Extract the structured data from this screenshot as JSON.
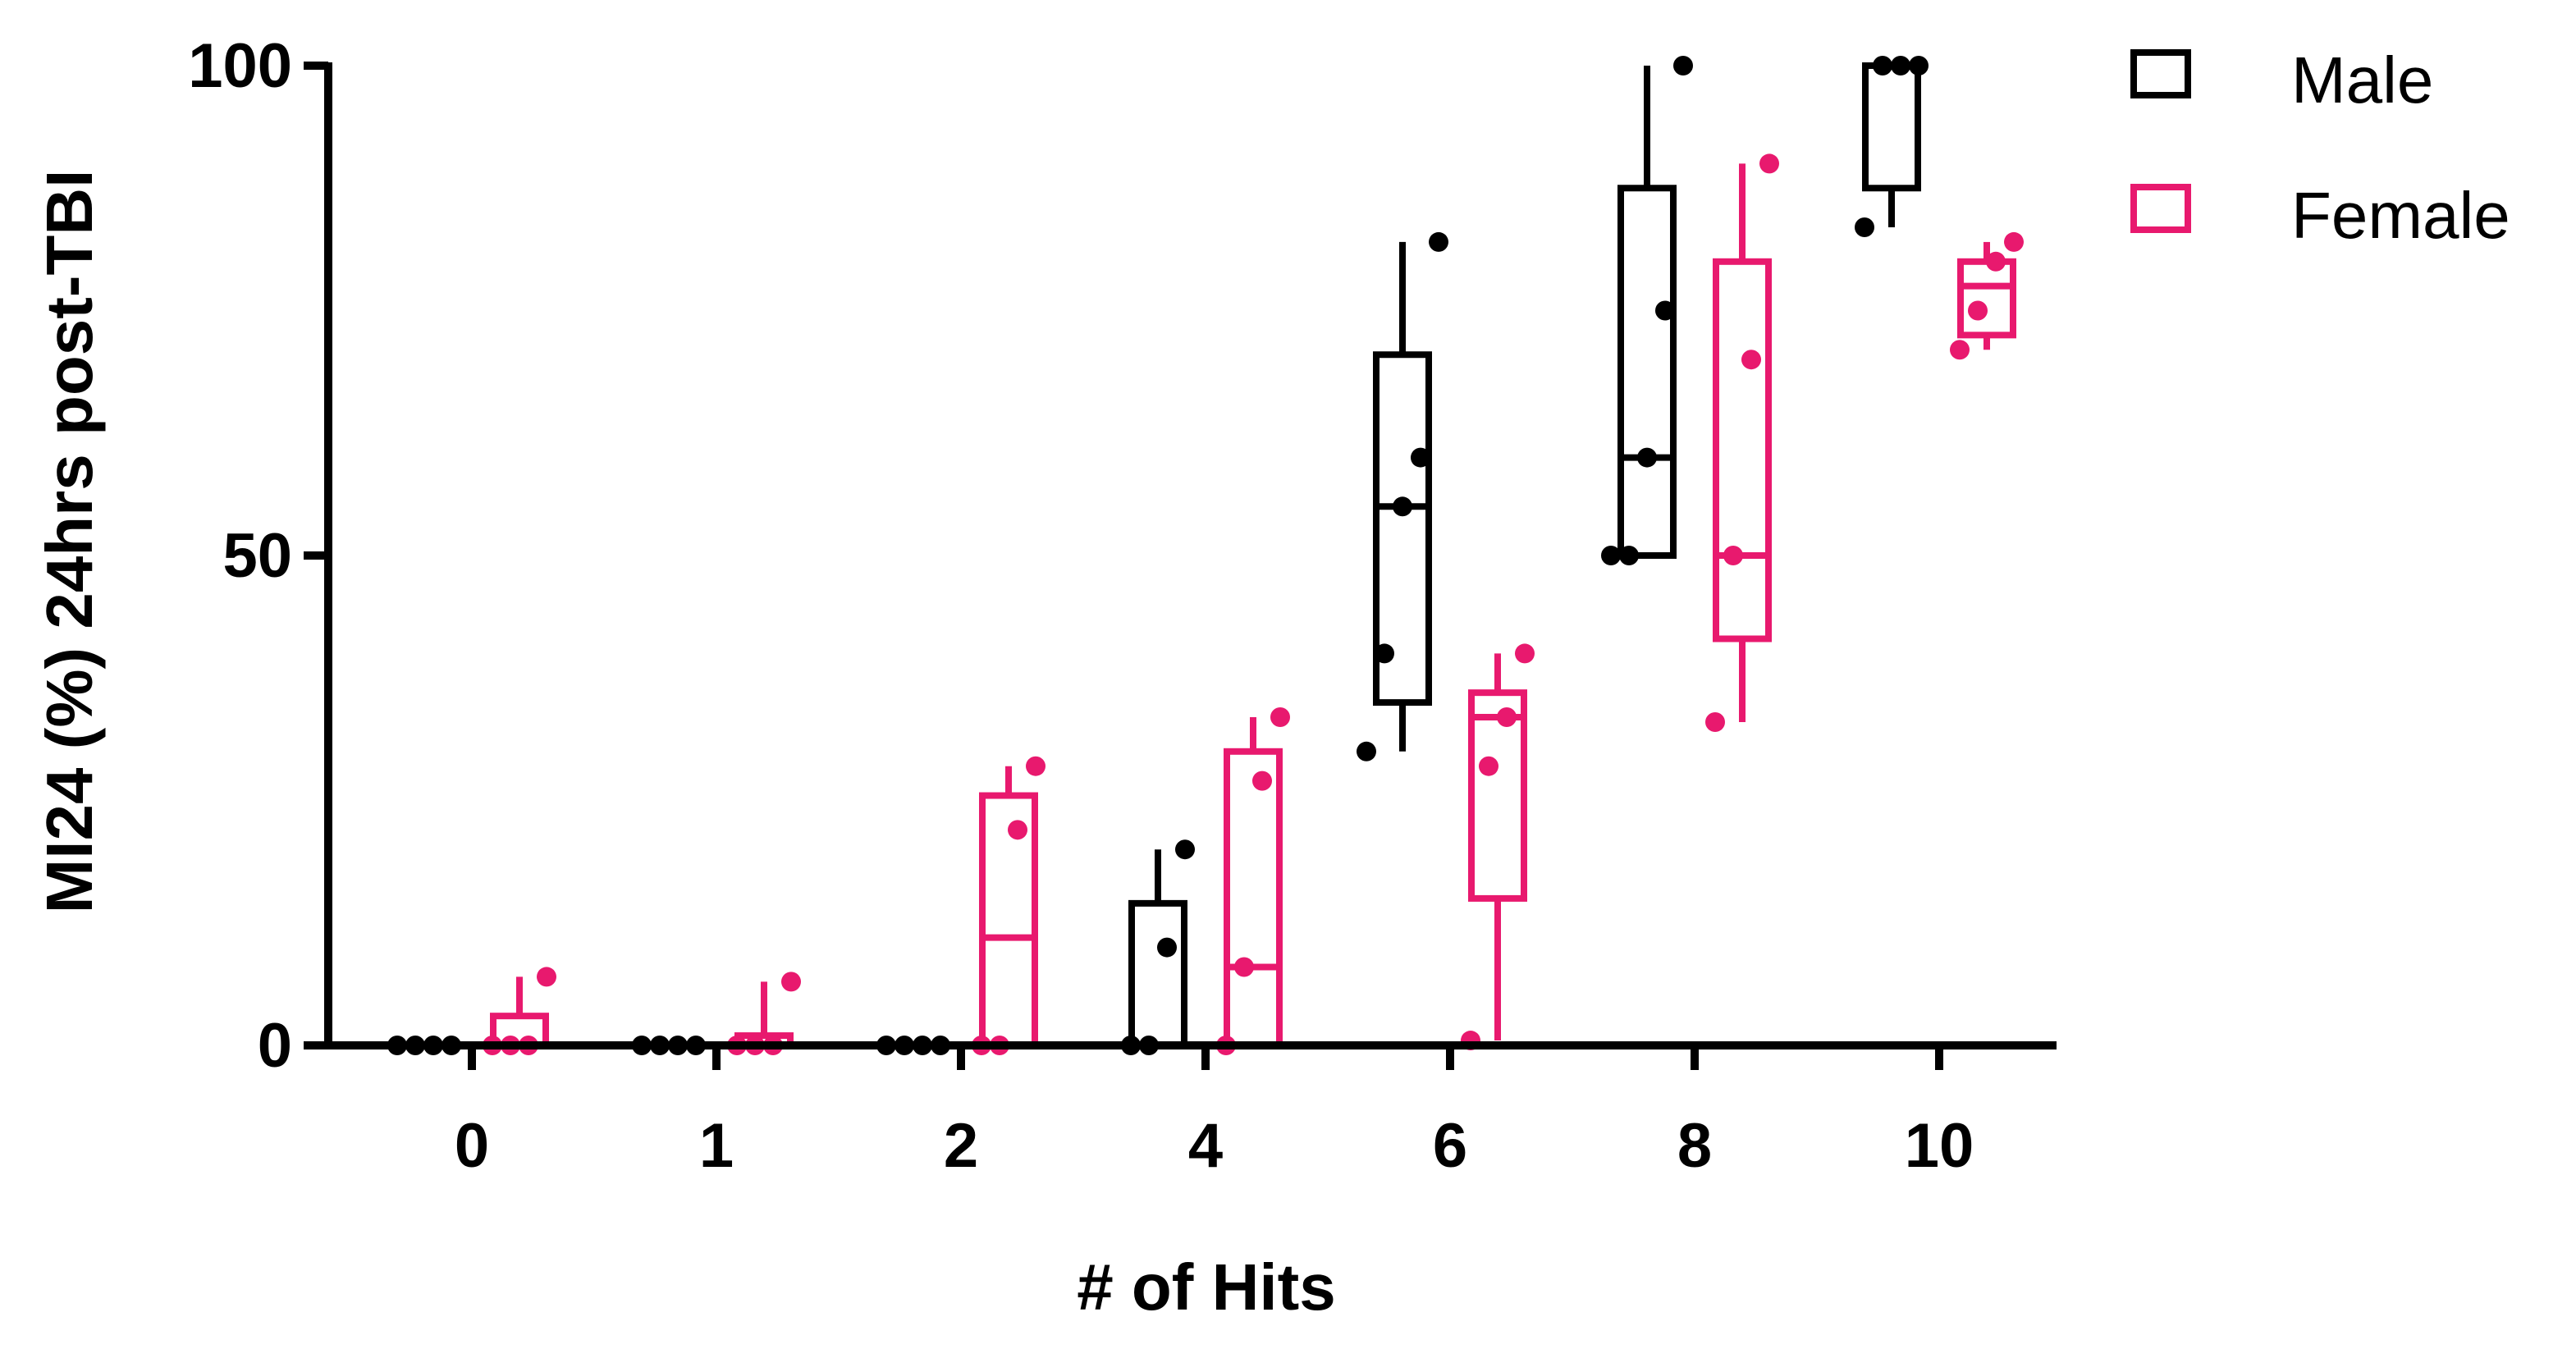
{
  "chart_data": {
    "type": "box",
    "xlabel": "# of Hits",
    "ylabel": "MI24 (%) 24hrs post-TBI",
    "ylim": [
      0,
      100
    ],
    "yticks": [
      0,
      50,
      100
    ],
    "categories": [
      "0",
      "1",
      "2",
      "4",
      "6",
      "8",
      "10"
    ],
    "grid": false,
    "legend": "top-right",
    "series": [
      {
        "name": "Male",
        "color": "#000000",
        "boxes": [
          {
            "category": "0",
            "min": 0,
            "q1": 0,
            "median": 0,
            "q3": 0,
            "max": 0,
            "points": [
              0,
              0,
              0,
              0
            ]
          },
          {
            "category": "1",
            "min": 0,
            "q1": 0,
            "median": 0,
            "q3": 0,
            "max": 0,
            "points": [
              0,
              0,
              0,
              0
            ]
          },
          {
            "category": "2",
            "min": 0,
            "q1": 0,
            "median": 0,
            "q3": 0,
            "max": 0,
            "points": [
              0,
              0,
              0,
              0
            ]
          },
          {
            "category": "4",
            "min": 0,
            "q1": 0,
            "median": 0,
            "q3": 14.5,
            "max": 20,
            "points": [
              0,
              0,
              10,
              20
            ]
          },
          {
            "category": "6",
            "min": 30,
            "q1": 35,
            "median": 55,
            "q3": 70.5,
            "max": 82,
            "points": [
              30,
              40,
              55,
              60,
              82
            ]
          },
          {
            "category": "8",
            "min": 50,
            "q1": 50,
            "median": 60,
            "q3": 87.5,
            "max": 100,
            "points": [
              50,
              50,
              60,
              75,
              100
            ]
          },
          {
            "category": "10",
            "min": 83.5,
            "q1": 87.5,
            "median": 100,
            "q3": 100,
            "max": 100,
            "points": [
              83.5,
              100,
              100,
              100
            ]
          }
        ]
      },
      {
        "name": "Female",
        "color": "#e8196e",
        "boxes": [
          {
            "category": "0",
            "min": 0,
            "q1": 0,
            "median": 0,
            "q3": 3,
            "max": 7,
            "points": [
              0,
              0,
              0,
              7
            ]
          },
          {
            "category": "1",
            "min": 0,
            "q1": 0,
            "median": 0,
            "q3": 1,
            "max": 6.5,
            "points": [
              0,
              0,
              0,
              6.5
            ]
          },
          {
            "category": "2",
            "min": 0,
            "q1": 0,
            "median": 11,
            "q3": 25.5,
            "max": 28.5,
            "points": [
              0,
              0,
              22,
              28.5
            ]
          },
          {
            "category": "4",
            "min": 0,
            "q1": 0,
            "median": 8,
            "q3": 30,
            "max": 33.5,
            "points": [
              0,
              8,
              27,
              33.5
            ]
          },
          {
            "category": "6",
            "min": 0.5,
            "q1": 15,
            "median": 33.5,
            "q3": 36,
            "max": 40,
            "points": [
              0.5,
              28.5,
              33.5,
              40
            ]
          },
          {
            "category": "8",
            "min": 33,
            "q1": 41.5,
            "median": 50,
            "q3": 80,
            "max": 90,
            "points": [
              33,
              50,
              70,
              90
            ]
          },
          {
            "category": "10",
            "min": 71,
            "q1": 72.5,
            "median": 77.5,
            "q3": 80,
            "max": 82,
            "points": [
              71,
              75,
              80,
              82
            ]
          }
        ]
      }
    ]
  }
}
